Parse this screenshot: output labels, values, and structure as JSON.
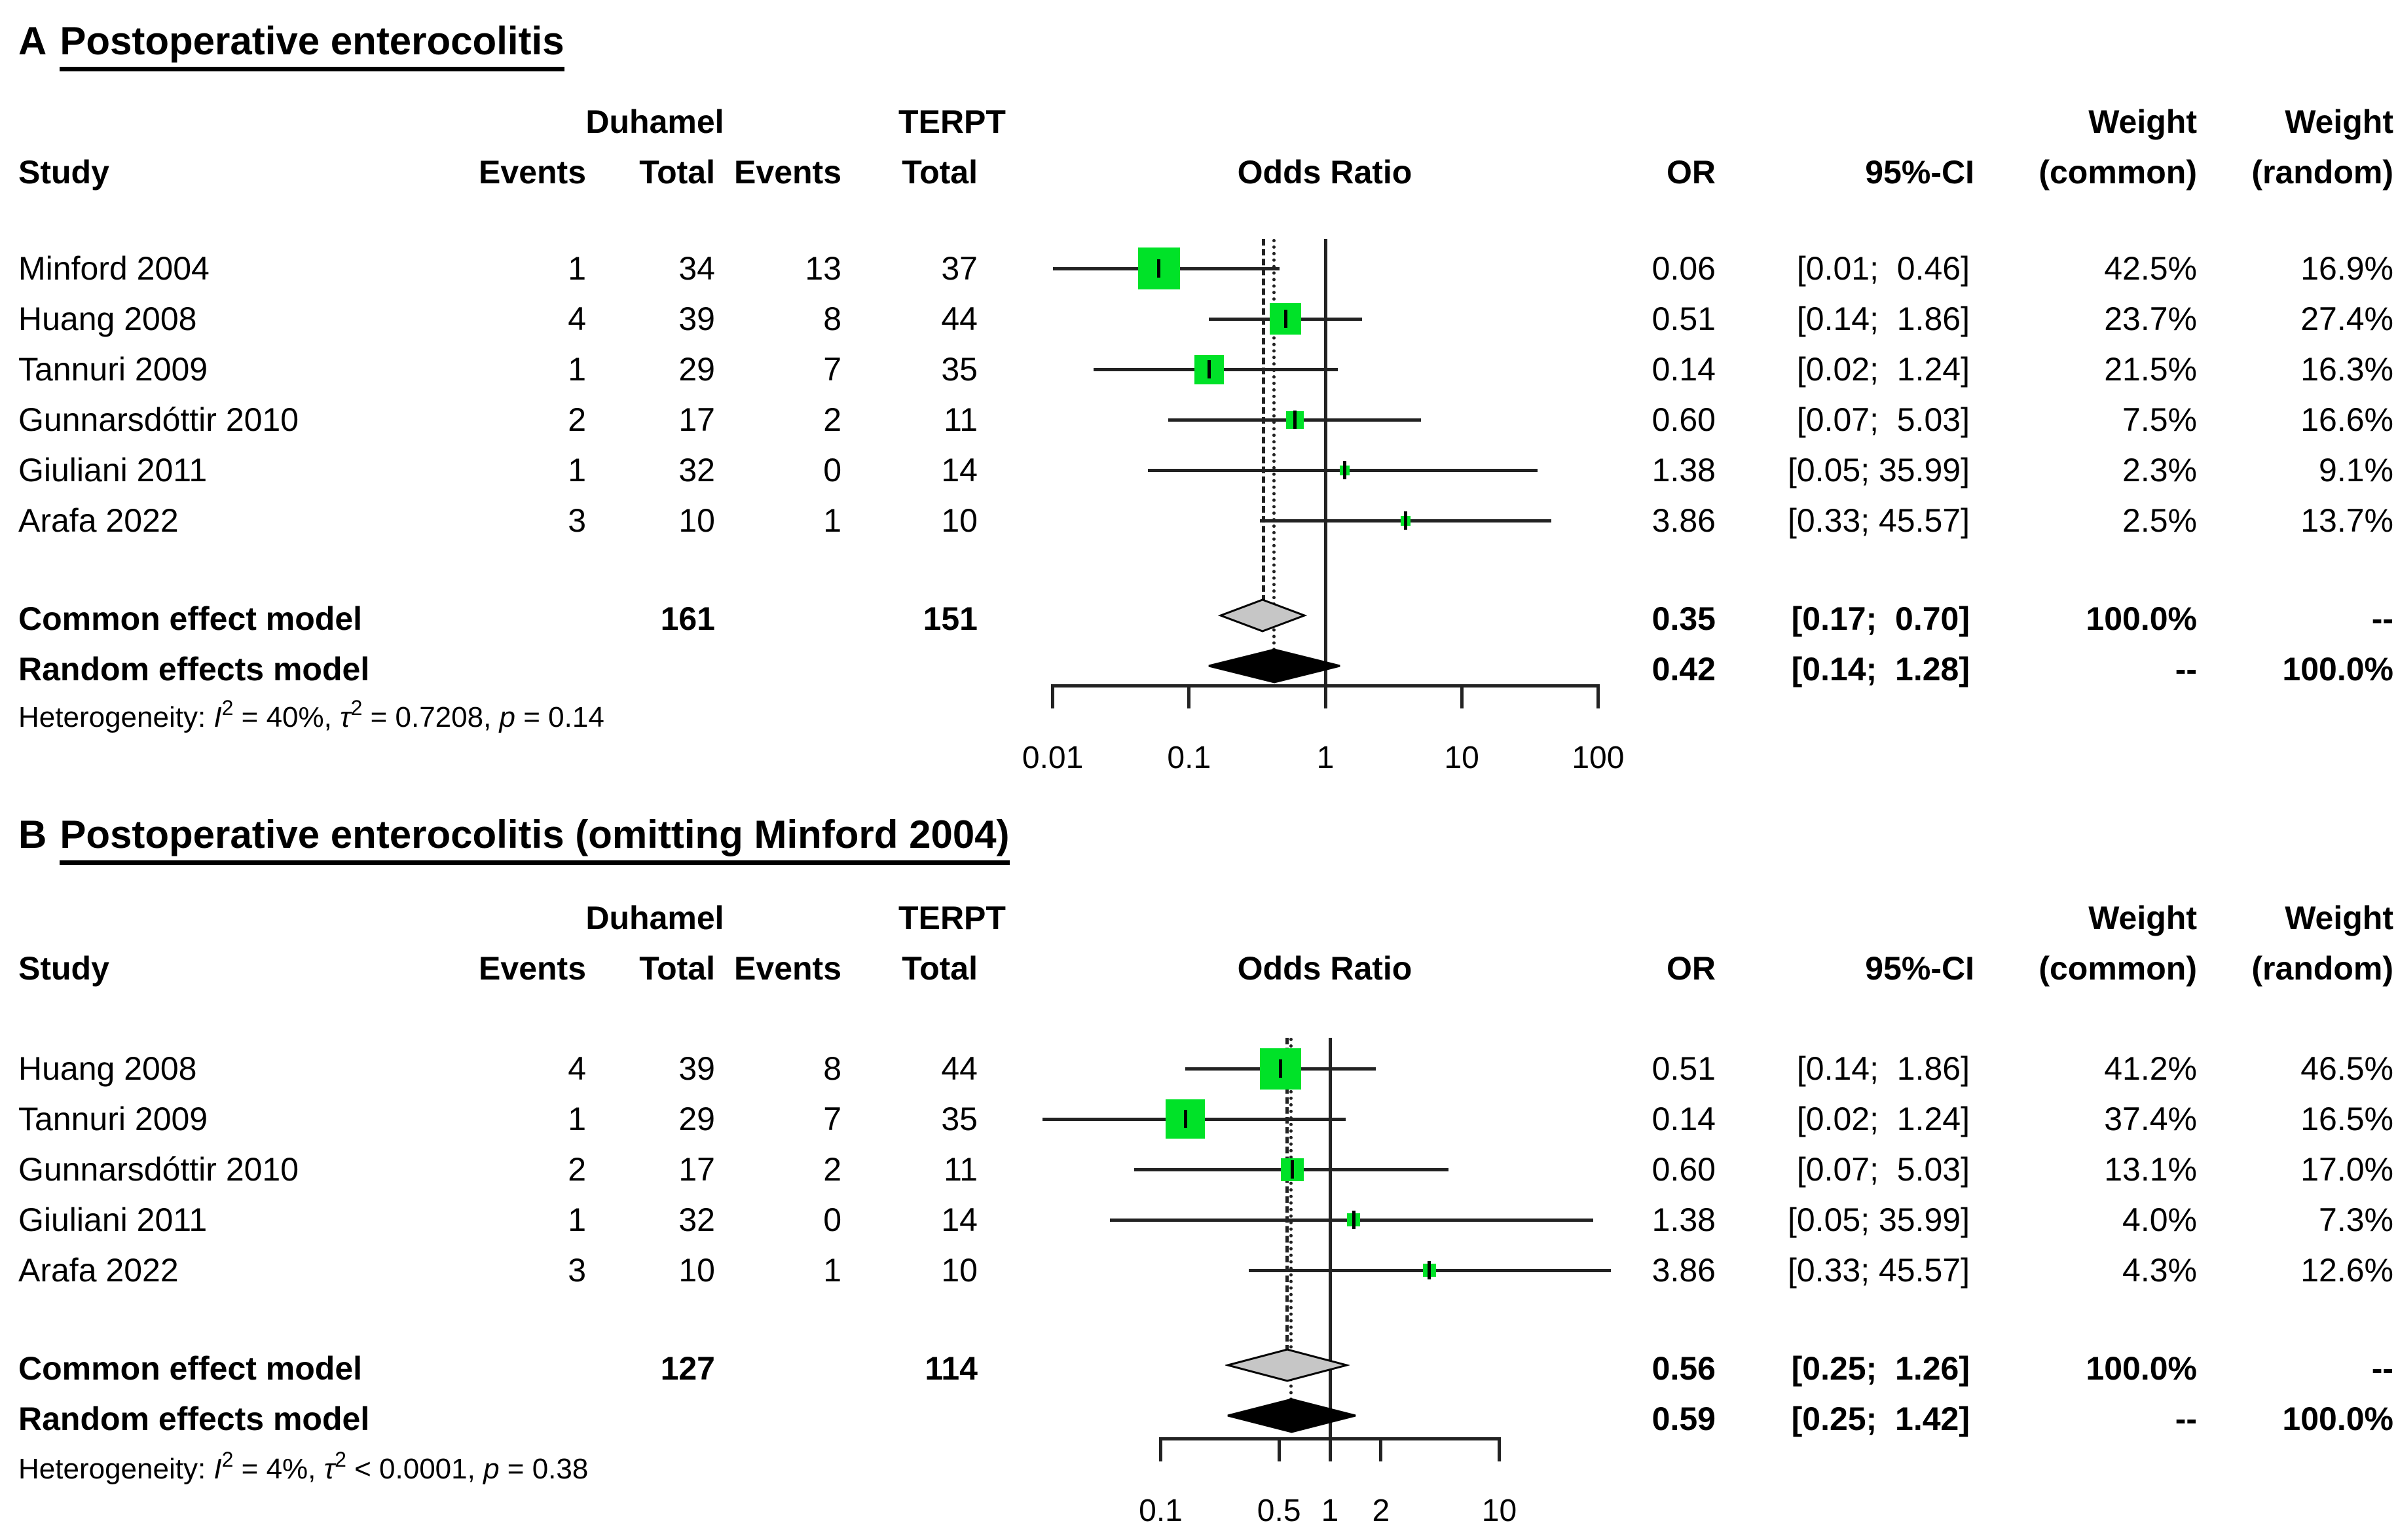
{
  "header": {
    "study": "Study",
    "group1": "Duhamel",
    "group2": "TERPT",
    "events": "Events",
    "total": "Total",
    "odds_ratio": "Odds Ratio",
    "or": "OR",
    "ci": "95%-CI",
    "weight": "Weight",
    "common": "(common)",
    "random": "(random)"
  },
  "colors": {
    "square_green": "#00E228",
    "diamond_common": "#C6C6C6",
    "diamond_random": "#000000",
    "line": "#222222"
  },
  "chart_data": [
    {
      "type": "scatter",
      "subtype": "forest-plot",
      "panel_letter": "A",
      "title": "Postoperative enterocolitis",
      "xscale": "log",
      "xlim": [
        0.01,
        100
      ],
      "axis_ticks": [
        {
          "label": "0.01",
          "value": 0.01
        },
        {
          "label": "0.1",
          "value": 0.1
        },
        {
          "label": "1",
          "value": 1
        },
        {
          "label": "10",
          "value": 10
        },
        {
          "label": "100",
          "value": 100
        }
      ],
      "rows": [
        {
          "study": "Minford 2004",
          "duhamel_events": "1",
          "duhamel_total": "34",
          "terpt_events": "13",
          "terpt_total": "37",
          "or": 0.06,
          "or_label": "0.06",
          "ci_low": 0.01,
          "ci_high": 0.46,
          "ci_label": "[0.01;  0.46]",
          "weight_common": "42.5%",
          "weight_random": "16.9%"
        },
        {
          "study": "Huang 2008",
          "duhamel_events": "4",
          "duhamel_total": "39",
          "terpt_events": "8",
          "terpt_total": "44",
          "or": 0.51,
          "or_label": "0.51",
          "ci_low": 0.14,
          "ci_high": 1.86,
          "ci_label": "[0.14;  1.86]",
          "weight_common": "23.7%",
          "weight_random": "27.4%"
        },
        {
          "study": "Tannuri 2009",
          "duhamel_events": "1",
          "duhamel_total": "29",
          "terpt_events": "7",
          "terpt_total": "35",
          "or": 0.14,
          "or_label": "0.14",
          "ci_low": 0.02,
          "ci_high": 1.24,
          "ci_label": "[0.02;  1.24]",
          "weight_common": "21.5%",
          "weight_random": "16.3%"
        },
        {
          "study": "Gunnarsdóttir 2010",
          "duhamel_events": "2",
          "duhamel_total": "17",
          "terpt_events": "2",
          "terpt_total": "11",
          "or": 0.6,
          "or_label": "0.60",
          "ci_low": 0.07,
          "ci_high": 5.03,
          "ci_label": "[0.07;  5.03]",
          "weight_common": "7.5%",
          "weight_random": "16.6%"
        },
        {
          "study": "Giuliani 2011",
          "duhamel_events": "1",
          "duhamel_total": "32",
          "terpt_events": "0",
          "terpt_total": "14",
          "or": 1.38,
          "or_label": "1.38",
          "ci_low": 0.05,
          "ci_high": 35.99,
          "ci_label": "[0.05; 35.99]",
          "weight_common": "2.3%",
          "weight_random": "9.1%"
        },
        {
          "study": "Arafa 2022",
          "duhamel_events": "3",
          "duhamel_total": "10",
          "terpt_events": "1",
          "terpt_total": "10",
          "or": 3.86,
          "or_label": "3.86",
          "ci_low": 0.33,
          "ci_high": 45.57,
          "ci_label": "[0.33; 45.57]",
          "weight_common": "2.5%",
          "weight_random": "13.7%"
        }
      ],
      "common_effect": {
        "label": "Common effect model",
        "duhamel_total": "161",
        "terpt_total": "151",
        "or": 0.35,
        "or_label": "0.35",
        "ci_low": 0.17,
        "ci_high": 0.7,
        "ci_label": "[0.17;  0.70]",
        "weight_common": "100.0%",
        "weight_random": "--"
      },
      "random_effects": {
        "label": "Random effects model",
        "or": 0.42,
        "or_label": "0.42",
        "ci_low": 0.14,
        "ci_high": 1.28,
        "ci_label": "[0.14;  1.28]",
        "weight_common": "--",
        "weight_random": "100.0%"
      },
      "heterogeneity": {
        "prefix": "Heterogeneity: ",
        "i_sym": "I",
        "sup1": "2",
        "mid1": " = 40%, ",
        "tau_sym": "τ",
        "sup2": "2",
        "mid2": " = 0.7208, ",
        "p_sym": "p",
        "tail": " = 0.14"
      }
    },
    {
      "type": "scatter",
      "subtype": "forest-plot",
      "panel_letter": "B",
      "title": "Postoperative enterocolitis (omitting Minford 2004)",
      "xscale": "log",
      "xlim": [
        0.1,
        10
      ],
      "axis_ticks": [
        {
          "label": "0.1",
          "value": 0.1
        },
        {
          "label": "0.5",
          "value": 0.5
        },
        {
          "label": "1",
          "value": 1
        },
        {
          "label": "2",
          "value": 2
        },
        {
          "label": "10",
          "value": 10
        }
      ],
      "rows": [
        {
          "study": "Huang 2008",
          "duhamel_events": "4",
          "duhamel_total": "39",
          "terpt_events": "8",
          "terpt_total": "44",
          "or": 0.51,
          "or_label": "0.51",
          "ci_low": 0.14,
          "ci_high": 1.86,
          "ci_label": "[0.14;  1.86]",
          "weight_common": "41.2%",
          "weight_random": "46.5%"
        },
        {
          "study": "Tannuri 2009",
          "duhamel_events": "1",
          "duhamel_total": "29",
          "terpt_events": "7",
          "terpt_total": "35",
          "or": 0.14,
          "or_label": "0.14",
          "ci_low": 0.02,
          "ci_high": 1.24,
          "ci_label": "[0.02;  1.24]",
          "weight_common": "37.4%",
          "weight_random": "16.5%"
        },
        {
          "study": "Gunnarsdóttir 2010",
          "duhamel_events": "2",
          "duhamel_total": "17",
          "terpt_events": "2",
          "terpt_total": "11",
          "or": 0.6,
          "or_label": "0.60",
          "ci_low": 0.07,
          "ci_high": 5.03,
          "ci_label": "[0.07;  5.03]",
          "weight_common": "13.1%",
          "weight_random": "17.0%"
        },
        {
          "study": "Giuliani 2011",
          "duhamel_events": "1",
          "duhamel_total": "32",
          "terpt_events": "0",
          "terpt_total": "14",
          "or": 1.38,
          "or_label": "1.38",
          "ci_low": 0.05,
          "ci_high": 35.99,
          "ci_label": "[0.05; 35.99]",
          "weight_common": "4.0%",
          "weight_random": "7.3%"
        },
        {
          "study": "Arafa 2022",
          "duhamel_events": "3",
          "duhamel_total": "10",
          "terpt_events": "1",
          "terpt_total": "10",
          "or": 3.86,
          "or_label": "3.86",
          "ci_low": 0.33,
          "ci_high": 45.57,
          "ci_label": "[0.33; 45.57]",
          "weight_common": "4.3%",
          "weight_random": "12.6%"
        }
      ],
      "common_effect": {
        "label": "Common effect model",
        "duhamel_total": "127",
        "terpt_total": "114",
        "or": 0.56,
        "or_label": "0.56",
        "ci_low": 0.25,
        "ci_high": 1.26,
        "ci_label": "[0.25;  1.26]",
        "weight_common": "100.0%",
        "weight_random": "--"
      },
      "random_effects": {
        "label": "Random effects model",
        "or": 0.59,
        "or_label": "0.59",
        "ci_low": 0.25,
        "ci_high": 1.42,
        "ci_label": "[0.25;  1.42]",
        "weight_common": "--",
        "weight_random": "100.0%"
      },
      "heterogeneity": {
        "prefix": "Heterogeneity: ",
        "i_sym": "I",
        "sup1": "2",
        "mid1": " = 4%, ",
        "tau_sym": "τ",
        "sup2": "2",
        "mid2": " < 0.0001, ",
        "p_sym": "p",
        "tail": " = 0.38"
      }
    }
  ]
}
